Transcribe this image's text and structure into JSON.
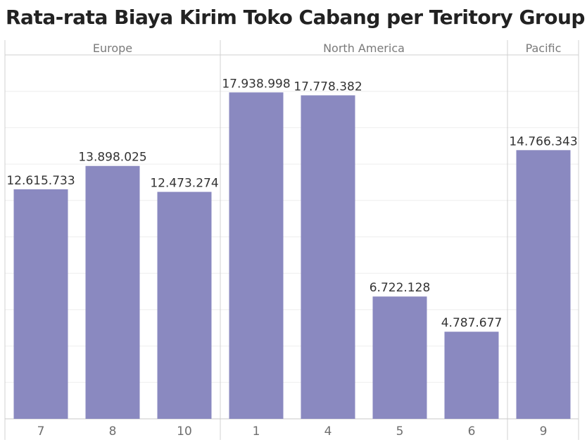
{
  "title": "Rata-rata Biaya Kirim Toko Cabang per Teritory Group",
  "chart_data": {
    "type": "bar",
    "title": "Rata-rata Biaya Kirim Toko Cabang per Teritory Group",
    "xlabel": "",
    "ylabel": "",
    "ylim": [
      0,
      20000000
    ],
    "grid": true,
    "bar_color": "#8a89c0",
    "groups": [
      {
        "name": "Europe",
        "categories": [
          "7",
          "8",
          "10"
        ],
        "values": [
          12615733,
          13898025,
          12473274
        ],
        "labels": [
          "12.615.733",
          "13.898.025",
          "12.473.274"
        ]
      },
      {
        "name": "North America",
        "categories": [
          "1",
          "4",
          "5",
          "6"
        ],
        "values": [
          17938998,
          17778382,
          6722128,
          4787677
        ],
        "labels": [
          "17.938.998",
          "17.778.382",
          "6.722.128",
          "4.787.677"
        ]
      },
      {
        "name": "Pacific",
        "categories": [
          "9"
        ],
        "values": [
          14766343
        ],
        "labels": [
          "14.766.343"
        ]
      }
    ]
  }
}
